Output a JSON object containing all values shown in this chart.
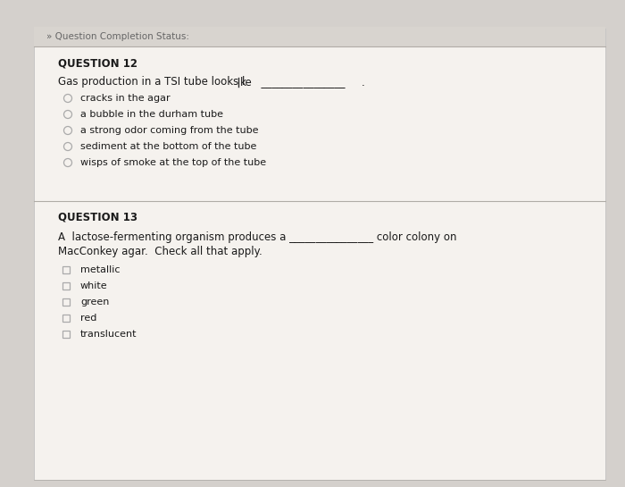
{
  "bg_outer": "#d4d0cc",
  "bg_inner": "#e8e4df",
  "panel_color": "#f5f2ee",
  "header_bg": "#d8d4cf",
  "header_text": "» Question Completion Status:",
  "header_text_color": "#666666",
  "q12_label": "QUESTION 12",
  "q12_options": [
    "cracks in the agar",
    "a bubble in the durham tube",
    "a strong odor coming from the tube",
    "sediment at the bottom of the tube",
    "wisps of smoke at the top of the tube"
  ],
  "q13_label": "QUESTION 13",
  "q13_options": [
    "metallic",
    "white",
    "green",
    "red",
    "translucent"
  ],
  "text_color": "#1a1a1a",
  "label_color": "#1a1a1a",
  "divider_color": "#b0aca6",
  "circle_color": "#aaaaaa",
  "font_size_header": 7.5,
  "font_size_label": 8.5,
  "font_size_text": 8.5,
  "font_size_option": 8.0
}
